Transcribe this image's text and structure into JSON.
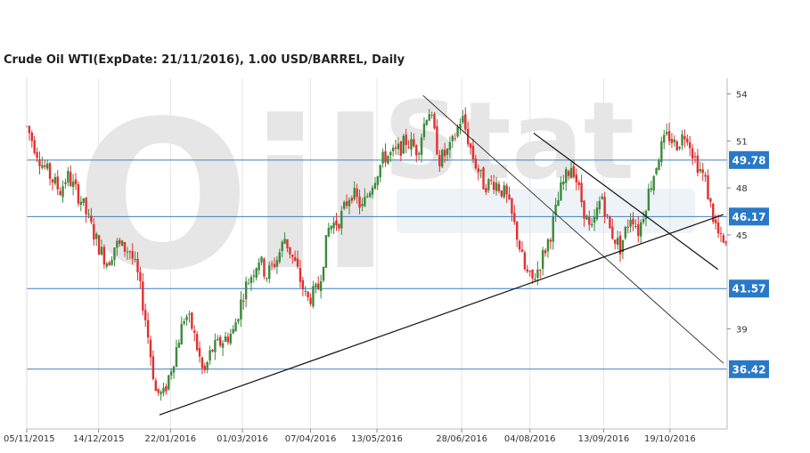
{
  "chart_data": {
    "type": "candlestick",
    "title": "Crude Oil WTI(ExpDate: 21/11/2016), 1.00 USD/BARREL, Daily",
    "xlabel": "",
    "ylabel": "",
    "ylim": [
      32.6,
      55
    ],
    "y_ticks": [
      54,
      51,
      48,
      45,
      39
    ],
    "x_ticks": [
      "05/11/2015",
      "14/12/2015",
      "22/01/2016",
      "01/03/2016",
      "07/04/2016",
      "13/05/2016",
      "28/06/2016",
      "04/08/2016",
      "13/09/2016",
      "19/10/2016"
    ],
    "x_tick_days": [
      0,
      39,
      78,
      117,
      154,
      190,
      236,
      273,
      313,
      349
    ],
    "x_range_days": [
      0,
      380
    ],
    "horizontal_levels": [
      {
        "label": "49.78",
        "value": 49.78
      },
      {
        "label": "46.17",
        "value": 46.17
      },
      {
        "label": "41.57",
        "value": 41.57
      },
      {
        "label": "36.42",
        "value": 36.42
      }
    ],
    "trendlines": [
      {
        "name": "rising-support",
        "day1": 72,
        "val1": 33.5,
        "day2": 378,
        "val2": 46.3
      },
      {
        "name": "falling-resistance",
        "day1": 215,
        "val1": 53.9,
        "day2": 378,
        "val2": 36.8
      },
      {
        "name": "falling-channel",
        "day1": 275,
        "val1": 51.5,
        "day2": 375,
        "val2": 42.8
      }
    ],
    "price_path": [
      [
        0,
        51.9
      ],
      [
        8,
        49.6
      ],
      [
        18,
        47.8
      ],
      [
        22,
        48.8
      ],
      [
        30,
        47.1
      ],
      [
        34,
        45.8
      ],
      [
        40,
        44.0
      ],
      [
        44,
        43.2
      ],
      [
        48,
        44.4
      ],
      [
        56,
        44.0
      ],
      [
        60,
        42.5
      ],
      [
        64,
        40.0
      ],
      [
        70,
        35.0
      ],
      [
        74,
        34.7
      ],
      [
        80,
        37.2
      ],
      [
        86,
        40.0
      ],
      [
        90,
        39.0
      ],
      [
        96,
        36.0
      ],
      [
        100,
        37.6
      ],
      [
        106,
        38.2
      ],
      [
        112,
        38.8
      ],
      [
        118,
        41.5
      ],
      [
        126,
        43.5
      ],
      [
        130,
        42.4
      ],
      [
        136,
        43.5
      ],
      [
        140,
        44.8
      ],
      [
        146,
        43.0
      ],
      [
        152,
        40.8
      ],
      [
        158,
        41.5
      ],
      [
        164,
        45.5
      ],
      [
        170,
        46.0
      ],
      [
        176,
        47.8
      ],
      [
        182,
        46.7
      ],
      [
        188,
        48.5
      ],
      [
        194,
        50.0
      ],
      [
        200,
        50.2
      ],
      [
        206,
        51.0
      ],
      [
        212,
        50.4
      ],
      [
        218,
        53.2
      ],
      [
        224,
        49.8
      ],
      [
        230,
        50.5
      ],
      [
        236,
        52.6
      ],
      [
        242,
        50.0
      ],
      [
        248,
        48.2
      ],
      [
        254,
        48.4
      ],
      [
        260,
        47.5
      ],
      [
        266,
        45.0
      ],
      [
        270,
        42.8
      ],
      [
        274,
        42.0
      ],
      [
        278,
        43.0
      ],
      [
        284,
        45.0
      ],
      [
        290,
        48.0
      ],
      [
        296,
        49.6
      ],
      [
        300,
        47.6
      ],
      [
        306,
        45.0
      ],
      [
        312,
        47.6
      ],
      [
        316,
        45.4
      ],
      [
        322,
        44.2
      ],
      [
        328,
        46.4
      ],
      [
        332,
        45.2
      ],
      [
        338,
        48.0
      ],
      [
        344,
        50.5
      ],
      [
        348,
        51.4
      ],
      [
        352,
        50.7
      ],
      [
        358,
        51.6
      ],
      [
        362,
        50.0
      ],
      [
        368,
        48.5
      ],
      [
        372,
        46.3
      ],
      [
        376,
        44.7
      ],
      [
        380,
        44.0
      ]
    ]
  },
  "watermark": {
    "line1": "Oil",
    "line2": "Stat"
  },
  "colors": {
    "up": "#3a8a3a",
    "down": "#e03030",
    "level_line": "#3d7fc0",
    "level_box": "#2a79c9",
    "trend": "#111111",
    "axis": "#bbbbbb"
  }
}
